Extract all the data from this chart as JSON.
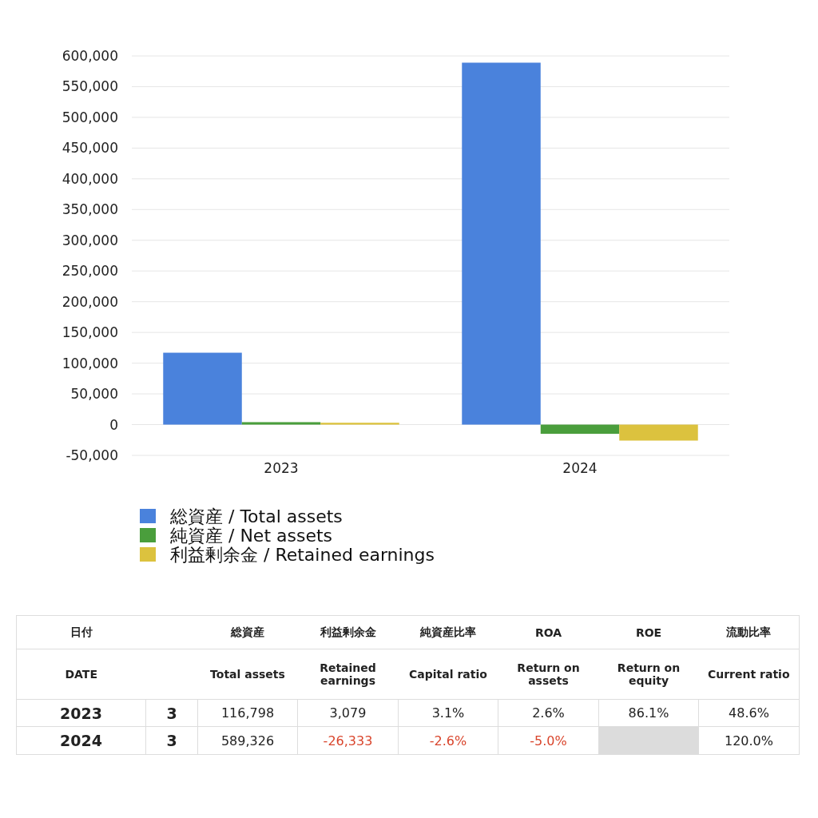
{
  "chart_data": [
    {
      "type": "bar",
      "categories": [
        "2023",
        "2024"
      ],
      "series": [
        {
          "name": "総資産 / Total assets",
          "color": "#4a82dc",
          "values": [
            117000,
            589000
          ]
        },
        {
          "name": "純資産 / Net assets",
          "color": "#4a9e3c",
          "values": [
            4000,
            -15000
          ]
        },
        {
          "name": "利益剰余金 / Retained earnings",
          "color": "#dcc23e",
          "values": [
            3000,
            -26000
          ]
        }
      ],
      "ylim": [
        -50000,
        600000
      ],
      "yticks": [
        {
          "value": -50000,
          "label": "-50,000"
        },
        0,
        {
          "value": 50000,
          "label": "50,000"
        },
        {
          "value": 100000,
          "label": "100,000"
        },
        {
          "value": 150000,
          "label": "150,000"
        },
        {
          "value": 200000,
          "label": "200,000"
        },
        {
          "value": 250000,
          "label": "250,000"
        },
        {
          "value": 300000,
          "label": "300,000"
        },
        {
          "value": 350000,
          "label": "350,000"
        },
        {
          "value": 400000,
          "label": "400,000"
        },
        {
          "value": 450000,
          "label": "450,000"
        },
        {
          "value": 500000,
          "label": "500,000"
        },
        {
          "value": 550000,
          "label": "550,000"
        },
        {
          "value": 600000,
          "label": "600,000"
        }
      ],
      "grid": "y",
      "legend": "bottom left"
    },
    {
      "type": "other",
      "annotations": [
        "日付",
        null,
        "総資産",
        "利益剰余金",
        "純資産比率",
        "ROA",
        "ROE",
        "流動比率",
        "DATE",
        null,
        "Total assets",
        "Retained earnings",
        "Capital ratio",
        "Return on assets",
        "Return on equity",
        "Current ratio",
        "2023",
        "3",
        "116,798",
        "3,079",
        "3.1%",
        "2.6%",
        "86.1%",
        "48.6%",
        "2024",
        "3",
        "589,326",
        "-26,333",
        "-2.6%",
        "-5.0%",
        null,
        "120.0%"
      ]
    }
  ]
}
